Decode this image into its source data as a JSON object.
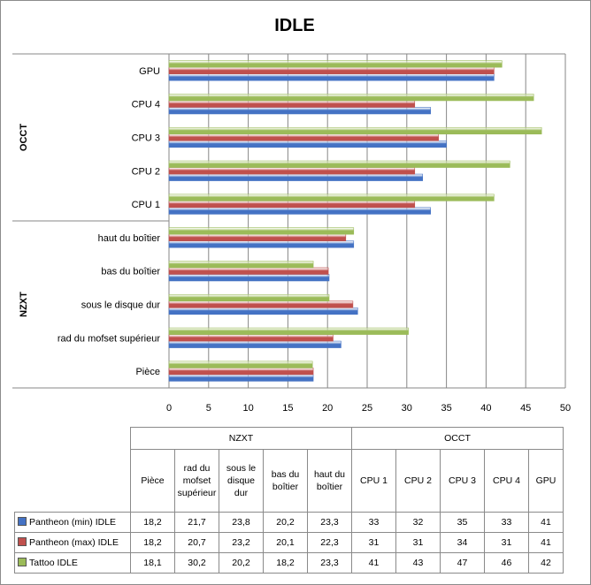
{
  "chart_data": {
    "type": "bar",
    "orientation": "horizontal",
    "title": "IDLE",
    "xlim": [
      0,
      50
    ],
    "x_ticks": [
      "0",
      "5",
      "10",
      "15",
      "20",
      "25",
      "30",
      "35",
      "40",
      "45",
      "50"
    ],
    "grid": true,
    "legend_placement": "data-table",
    "groups": [
      {
        "name": "NZXT",
        "categories": [
          "Pièce",
          "rad du mofset supérieur",
          "sous le disque dur",
          "bas du boîtier",
          "haut du boîtier"
        ]
      },
      {
        "name": "OCCT",
        "categories": [
          "CPU 1",
          "CPU 2",
          "CPU 3",
          "CPU 4",
          "GPU"
        ]
      }
    ],
    "categories": [
      "Pièce",
      "rad du mofset supérieur",
      "sous le disque dur",
      "bas du boîtier",
      "haut du boîtier",
      "CPU 1",
      "CPU 2",
      "CPU 3",
      "CPU 4",
      "GPU"
    ],
    "series": [
      {
        "name": "Pantheon (min) IDLE",
        "color": "#4472c4",
        "values": [
          18.2,
          21.7,
          23.8,
          20.2,
          23.3,
          33,
          32,
          35,
          33,
          41
        ],
        "labels": [
          "18,2",
          "21,7",
          "23,8",
          "20,2",
          "23,3",
          "33",
          "32",
          "35",
          "33",
          "41"
        ]
      },
      {
        "name": "Pantheon (max) IDLE",
        "color": "#c0504d",
        "values": [
          18.2,
          20.7,
          23.2,
          20.1,
          22.3,
          31,
          31,
          34,
          31,
          41
        ],
        "labels": [
          "18,2",
          "20,7",
          "23,2",
          "20,1",
          "22,3",
          "31",
          "31",
          "34",
          "31",
          "41"
        ]
      },
      {
        "name": "Tattoo IDLE",
        "color": "#9bbb59",
        "values": [
          18.1,
          30.2,
          20.2,
          18.2,
          23.3,
          41,
          43,
          47,
          46,
          42
        ],
        "labels": [
          "18,1",
          "30,2",
          "20,2",
          "18,2",
          "23,3",
          "41",
          "43",
          "47",
          "46",
          "42"
        ]
      }
    ]
  },
  "table": {
    "column_headers": [
      "Pièce",
      "rad du mofset supérieur",
      "sous le disque dur",
      "bas du boîtier",
      "haut du boîtier",
      "CPU 1",
      "CPU 2",
      "CPU 3",
      "CPU 4",
      "GPU"
    ]
  }
}
